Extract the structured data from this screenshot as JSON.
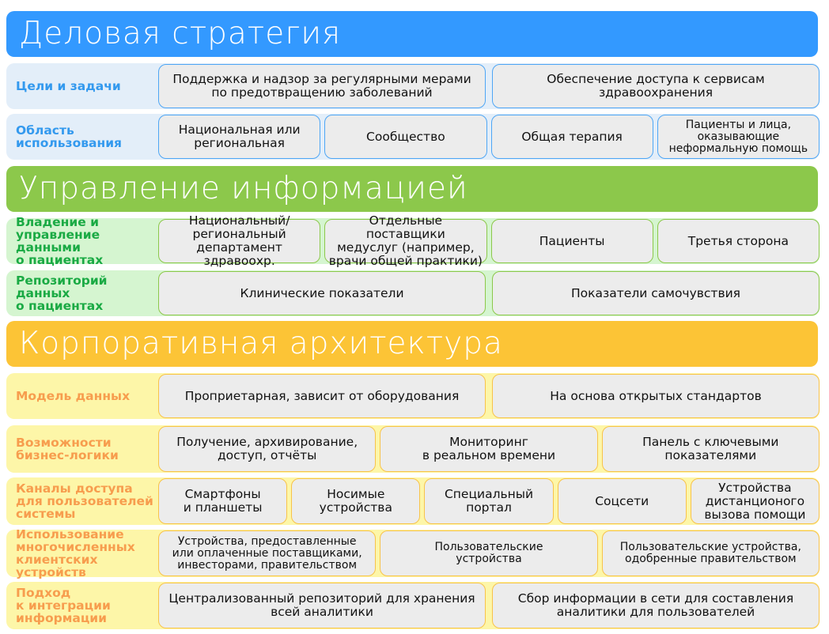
{
  "colors": {
    "strategy": "#3399ff",
    "information": "#8cc84b",
    "architecture": "#fcc436"
  },
  "sections": [
    {
      "title": "Деловая стратегия",
      "rows": [
        {
          "label": "Цели и задачи",
          "cells": [
            "Поддержка и надзор за регулярными мерами\nпо предотвращению заболеваний",
            "Обеспечение доступа к сервисам\nздравоохранения"
          ]
        },
        {
          "label": "Область\nиспользования",
          "cells": [
            "Национальная или\nрегиональная",
            "Сообщество",
            "Общая терапия",
            "Пациенты и лица,\nоказывающие\nнеформальную помощь"
          ]
        }
      ]
    },
    {
      "title": "Управление информацией",
      "rows": [
        {
          "label": "Владение и\nуправление данными\nо пациентах",
          "cells": [
            "Национальный/\nрегиональный\nдепартамент здравоохр.",
            "Отдельные поставщики\nмедуслуг (например,\nврачи общей практики)",
            "Пациенты",
            "Третья сторона"
          ]
        },
        {
          "label": "Репозиторий\nданных\nо пациентах",
          "cells": [
            "Клинические показатели",
            "Показатели самочувствия"
          ]
        }
      ]
    },
    {
      "title": "Корпоративная архитектура",
      "rows": [
        {
          "label": "Модель данных",
          "cells": [
            "Проприетарная, зависит от оборудования",
            "На основа открытых стандартов"
          ]
        },
        {
          "label": "Возможности\nбизнес-логики",
          "cells": [
            "Получение, архивирование,\nдоступ, отчёты",
            "Мониторинг\nв реальном времени",
            "Панель с ключевыми\nпоказателями"
          ]
        },
        {
          "label": "Каналы доступа\nдля пользователей\nсистемы",
          "cells": [
            "Смартфоны\nи планшеты",
            "Носимые\nустройства",
            "Специальный\nпортал",
            "Соцсети",
            "Устройства\nдистанционого\nвызова помощи"
          ]
        },
        {
          "label": "Использование\nмногочисленных\nклиентских устройств",
          "cells": [
            "Устройства, предоставленные\nили оплаченные поставщиками,\nинвесторами, правительством",
            "Пользовательские\nустройства",
            "Пользовательские устройства,\nодобренные правительством"
          ]
        },
        {
          "label": "Подход\nк интеграции\nинформации",
          "cells": [
            "Централизованный репозиторий для хранения\nвсей аналитики",
            "Сбор информации в сети для составления\nаналитики для пользователей"
          ]
        }
      ]
    }
  ]
}
